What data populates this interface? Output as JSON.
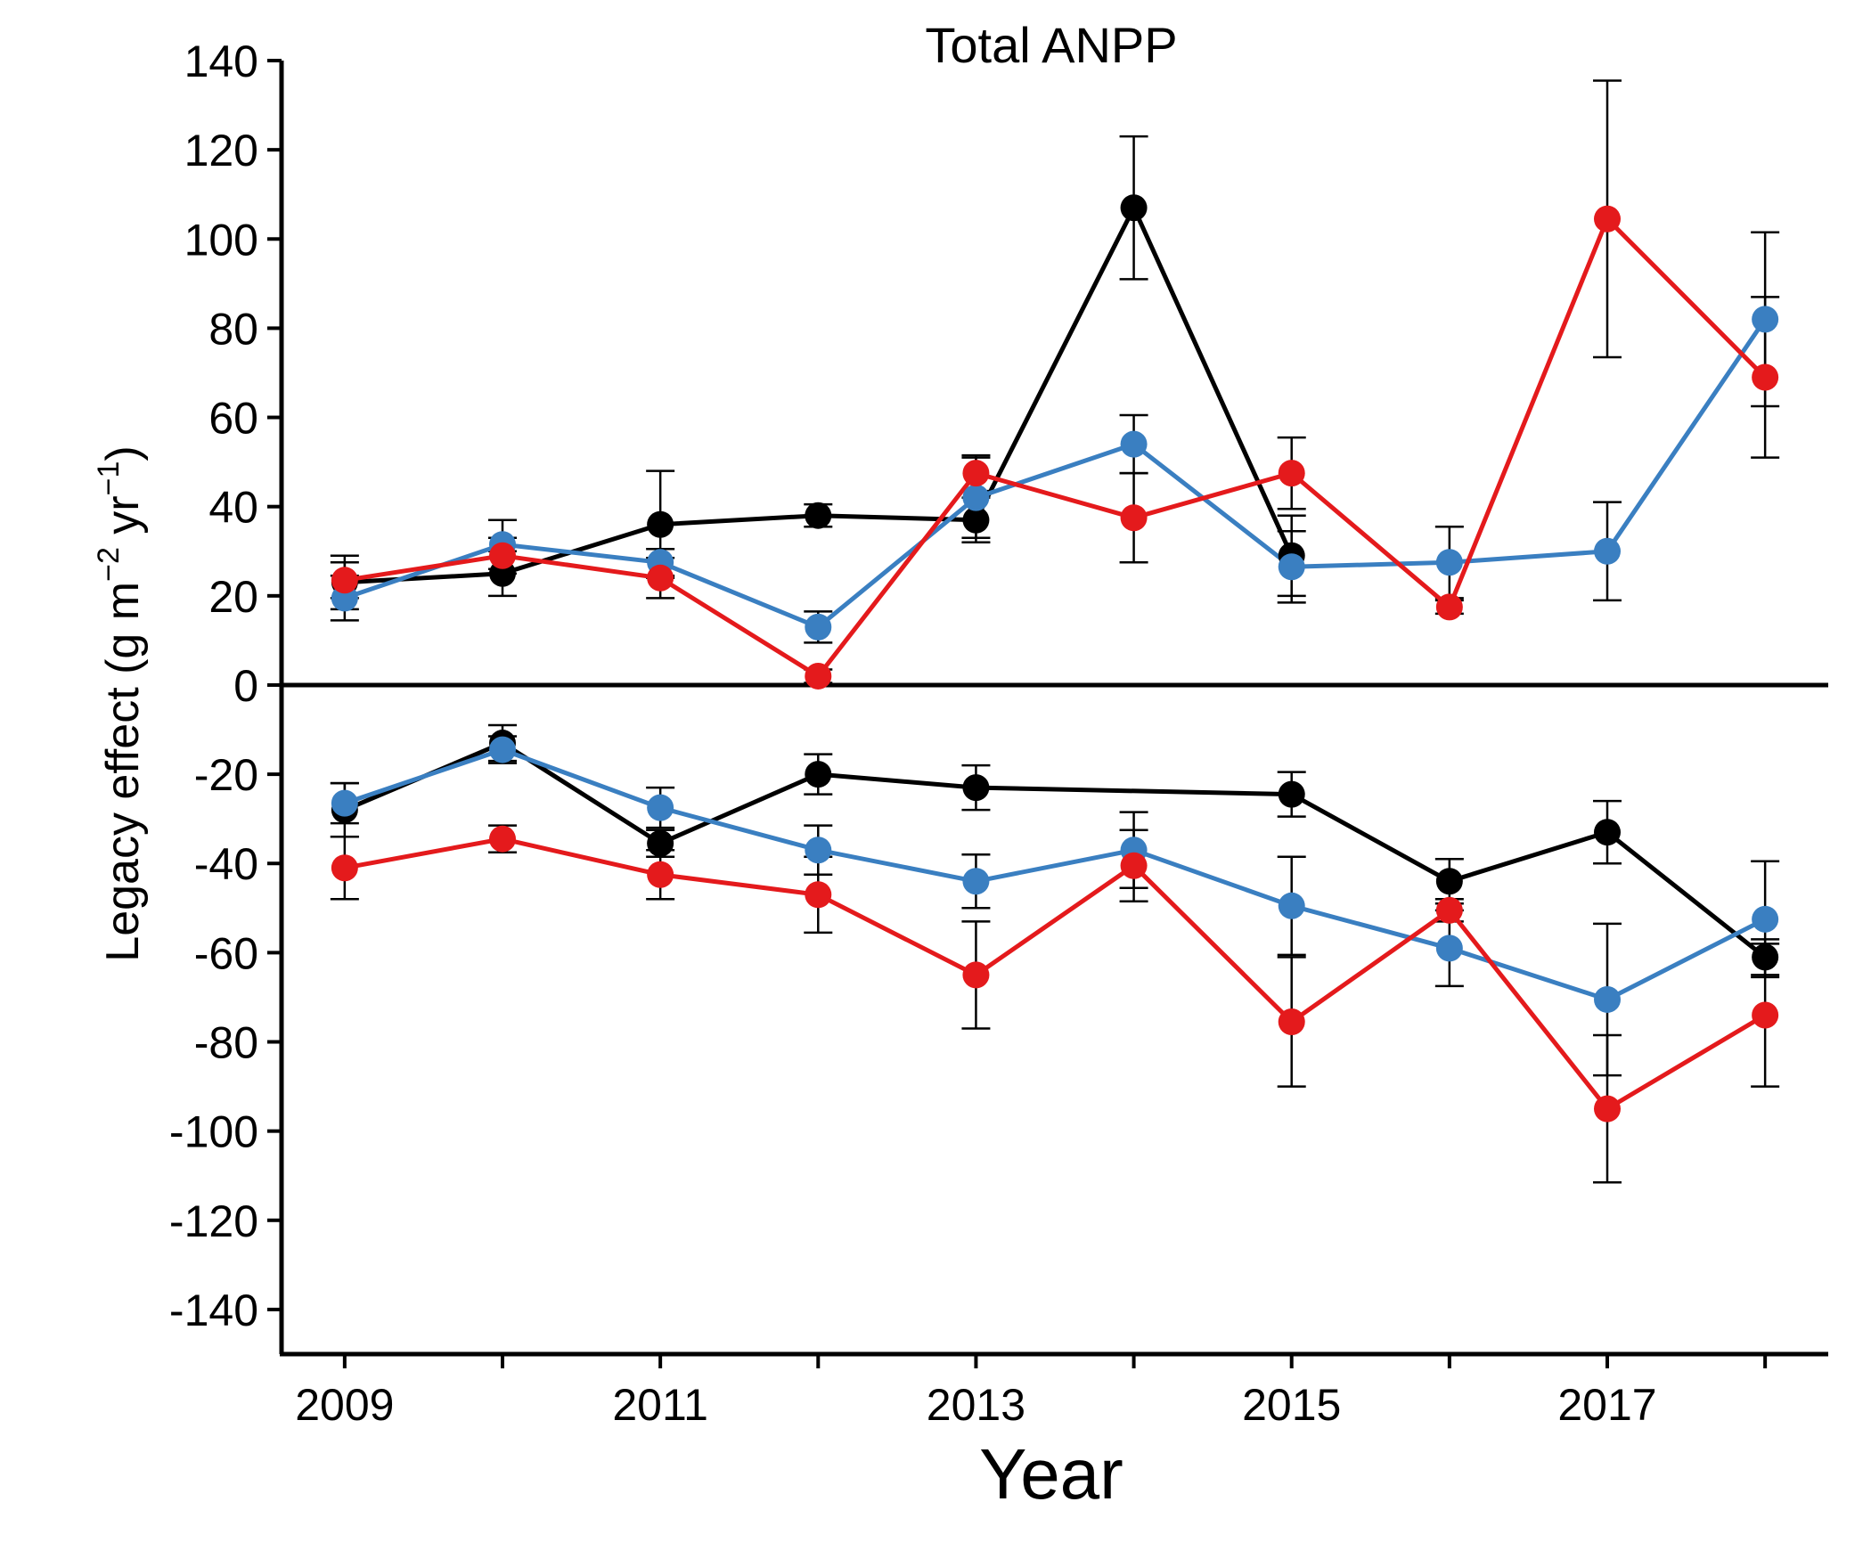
{
  "chart_data": {
    "type": "line",
    "title": "Total ANPP",
    "xlabel": "Year",
    "ylabel": "Legacy effect (g m−2 yr−1)",
    "ylabel_parts": {
      "main": "Legacy effect (g  m",
      "sup1": "−2",
      "mid": " yr",
      "sup2": "−1",
      "end": ")"
    },
    "xlim": [
      2008.6,
      2018.4
    ],
    "ylim": [
      -150,
      140
    ],
    "xticks": [
      2009,
      2011,
      2013,
      2015,
      2017
    ],
    "yticks": [
      140,
      120,
      100,
      80,
      60,
      40,
      20,
      0,
      -20,
      -40,
      -60,
      -80,
      -100,
      -120,
      -140
    ],
    "grid": false,
    "legend": "none",
    "series": [
      {
        "color": "#000000",
        "points": [
          {
            "x": 2009,
            "y": 23,
            "err": 6
          },
          {
            "x": 2010,
            "y": 25,
            "err": 5
          },
          {
            "x": 2011,
            "y": 36,
            "err": 12
          },
          {
            "x": 2012,
            "y": 38,
            "err": 2.5
          },
          {
            "x": 2013,
            "y": 37,
            "err": 5
          },
          {
            "x": 2014,
            "y": 107,
            "err": 16
          },
          {
            "x": 2015,
            "y": 29,
            "err": 9
          }
        ]
      },
      {
        "color": "#3a7fc1",
        "points": [
          {
            "x": 2009,
            "y": 19.5,
            "err": 5
          },
          {
            "x": 2010,
            "y": 31.5,
            "err": 5.5
          },
          {
            "x": 2011,
            "y": 27.5,
            "err": 3
          },
          {
            "x": 2012,
            "y": 13,
            "err": 3.5
          },
          {
            "x": 2013,
            "y": 42,
            "err": 9
          },
          {
            "x": 2014,
            "y": 54,
            "err": 6.5
          },
          {
            "x": 2015,
            "y": 26.5,
            "err": 8
          },
          {
            "x": 2016,
            "y": 27.5,
            "err": 8
          },
          {
            "x": 2017,
            "y": 30,
            "err": 11
          },
          {
            "x": 2018,
            "y": 82,
            "err": 19.5
          }
        ]
      },
      {
        "color": "#e41a1c",
        "points": [
          {
            "x": 2009,
            "y": 23.5,
            "err": 4
          },
          {
            "x": 2010,
            "y": 29,
            "err": 4
          },
          {
            "x": 2011,
            "y": 24,
            "err": 4.5
          },
          {
            "x": 2012,
            "y": 2,
            "err": 1.5
          },
          {
            "x": 2013,
            "y": 47.5,
            "err": 4
          },
          {
            "x": 2014,
            "y": 37.5,
            "err": 10
          },
          {
            "x": 2015,
            "y": 47.5,
            "err": 8
          },
          {
            "x": 2016,
            "y": 17.5,
            "err": 1.5
          },
          {
            "x": 2017,
            "y": 104.5,
            "err": 31
          },
          {
            "x": 2018,
            "y": 69,
            "err": 18
          }
        ]
      },
      {
        "color": "#000000",
        "points": [
          {
            "x": 2009,
            "y": -28,
            "err": 6
          },
          {
            "x": 2010,
            "y": -13,
            "err": 4
          },
          {
            "x": 2011,
            "y": -35.5,
            "err": 3
          },
          {
            "x": 2012,
            "y": -20,
            "err": 4.5
          },
          {
            "x": 2013,
            "y": -23,
            "err": 5
          },
          {
            "x": 2015,
            "y": -24.5,
            "err": 5
          },
          {
            "x": 2016,
            "y": -44,
            "err": 5
          },
          {
            "x": 2017,
            "y": -33,
            "err": 7
          },
          {
            "x": 2018,
            "y": -61,
            "err": 4
          }
        ]
      },
      {
        "color": "#3a7fc1",
        "points": [
          {
            "x": 2009,
            "y": -26.5,
            "err": 4.5
          },
          {
            "x": 2010,
            "y": -14.5,
            "err": 3
          },
          {
            "x": 2011,
            "y": -27.5,
            "err": 4.5
          },
          {
            "x": 2012,
            "y": -37,
            "err": 5.5
          },
          {
            "x": 2013,
            "y": -44,
            "err": 6
          },
          {
            "x": 2014,
            "y": -37,
            "err": 8.5
          },
          {
            "x": 2015,
            "y": -49.5,
            "err": 11
          },
          {
            "x": 2016,
            "y": -59,
            "err": 8.5
          },
          {
            "x": 2017,
            "y": -70.5,
            "err": 17
          },
          {
            "x": 2018,
            "y": -52.5,
            "err": 13
          }
        ]
      },
      {
        "color": "#e41a1c",
        "points": [
          {
            "x": 2009,
            "y": -41,
            "err": 7
          },
          {
            "x": 2010,
            "y": -34.5,
            "err": 3
          },
          {
            "x": 2011,
            "y": -42.5,
            "err": 5.5
          },
          {
            "x": 2012,
            "y": -47,
            "err": 8.5
          },
          {
            "x": 2013,
            "y": -65,
            "err": 12
          },
          {
            "x": 2014,
            "y": -40.5,
            "err": 8
          },
          {
            "x": 2015,
            "y": -75.5,
            "err": 14.5
          },
          {
            "x": 2016,
            "y": -50.5,
            "err": 2.5
          },
          {
            "x": 2017,
            "y": -95,
            "err": 16.5
          },
          {
            "x": 2018,
            "y": -74,
            "err": 16
          }
        ]
      }
    ]
  }
}
